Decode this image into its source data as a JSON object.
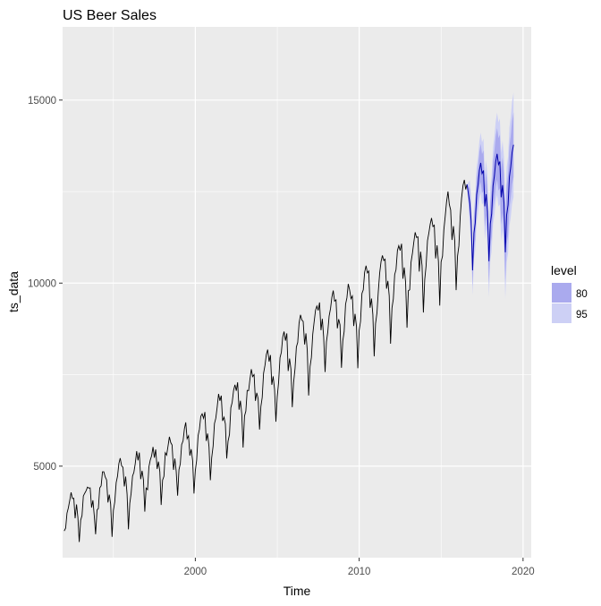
{
  "chart_data": {
    "type": "line",
    "title": "US Beer Sales",
    "xlabel": "Time",
    "ylabel": "ts_data",
    "xlim": [
      1991.9,
      2020.5
    ],
    "ylim": [
      2500,
      17000
    ],
    "x_ticks": [
      2000,
      2010,
      2020
    ],
    "x_tick_labels": [
      "2000",
      "2010",
      "2020"
    ],
    "y_ticks": [
      5000,
      10000,
      15000
    ],
    "y_tick_labels": [
      "5000",
      "10000",
      "15000"
    ],
    "grid": true,
    "legend": {
      "title": "level",
      "placement": "right",
      "entries": [
        {
          "label": "80",
          "color": "#aaaaee"
        },
        {
          "label": "95",
          "color": "#cdd0f5"
        }
      ]
    },
    "colors": {
      "panel_background": "#ebebeb",
      "grid": "#ffffff",
      "historical_line": "#000000",
      "forecast_line": "#0000aa",
      "band_80": "#aaaaee",
      "band_95": "#cdd0f5"
    },
    "historical": {
      "name": "ts_data",
      "start": 1992.0,
      "frequency": 12,
      "seasonal_profile": [
        -650,
        -450,
        150,
        350,
        650,
        800,
        550,
        600,
        -200,
        50,
        -350,
        -1450
      ],
      "trend_knots": [
        [
          1992.0,
          3650
        ],
        [
          1995.0,
          4350
        ],
        [
          2000.0,
          5550
        ],
        [
          2005.0,
          7650
        ],
        [
          2008.0,
          8950
        ],
        [
          2009.5,
          9150
        ],
        [
          2012.0,
          10050
        ],
        [
          2015.0,
          11200
        ],
        [
          2016.6,
          11900
        ]
      ]
    },
    "forecast": {
      "start": 2016.667,
      "frequency": 12,
      "trend_knots": [
        [
          2016.667,
          12100
        ],
        [
          2019.5,
          12800
        ]
      ],
      "seasonal_profile": [
        -650,
        -450,
        150,
        350,
        650,
        800,
        550,
        600,
        -200,
        50,
        -350,
        -1450
      ],
      "amplitude_growth": 1.25,
      "band_80_halfwidth": [
        380,
        900
      ],
      "band_95_halfwidth": [
        600,
        1450
      ]
    }
  }
}
